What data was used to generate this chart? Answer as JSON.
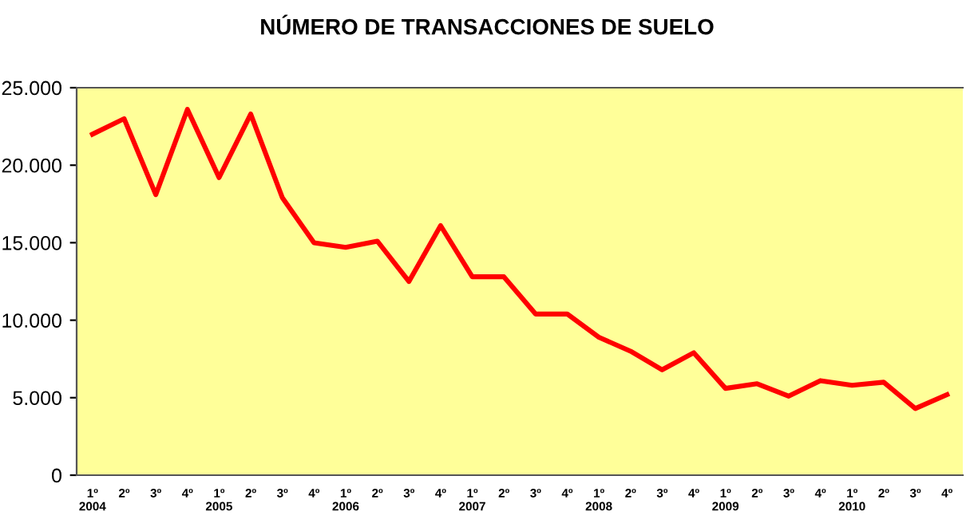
{
  "chart_data": {
    "type": "line",
    "title": "NÚMERO DE TRANSACCIONES DE SUELO",
    "categories": [
      "1º\n2004",
      "2º",
      "3º",
      "4º",
      "1º\n2005",
      "2º",
      "3º",
      "4º",
      "1º\n2006",
      "2º",
      "3º",
      "4º",
      "1º\n2007",
      "2º",
      "3º",
      "4º",
      "1º\n2008",
      "2º",
      "3º",
      "4º",
      "1º\n2009",
      "2º",
      "3º",
      "4º",
      "1º\n2010",
      "2º",
      "3º",
      "4º"
    ],
    "series": [
      {
        "color": "#ff0000",
        "values": [
          22000,
          23000,
          18100,
          23600,
          19200,
          23300,
          17900,
          15000,
          14700,
          15100,
          12500,
          16100,
          12800,
          12800,
          10400,
          10400,
          8900,
          8000,
          6800,
          7900,
          5600,
          5900,
          5100,
          6100,
          5800,
          6000,
          4300,
          5200
        ]
      }
    ],
    "ylim": [
      0,
      25000
    ],
    "yticks": [
      0,
      {
        "value": 5000,
        "label": "5.000"
      },
      {
        "value": 10000,
        "label": "10.000"
      },
      {
        "value": 15000,
        "label": "15.000"
      },
      {
        "value": 20000,
        "label": "20.000"
      },
      {
        "value": 25000,
        "label": "25.000"
      }
    ],
    "grid": false,
    "marker": "none",
    "line_style": "solid"
  }
}
